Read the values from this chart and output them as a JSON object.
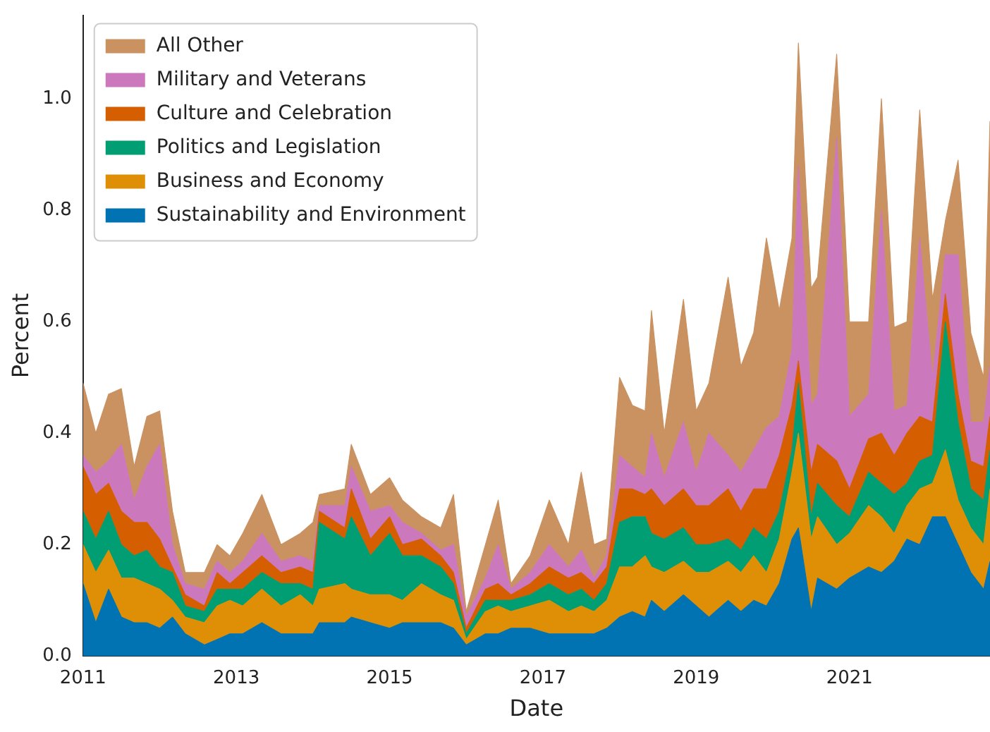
{
  "chart_data": {
    "type": "area",
    "stacked": true,
    "xlabel": "Date",
    "ylabel": "Percent",
    "legend": "top left",
    "grid": false,
    "x": [
      "2011-01",
      "2011-03",
      "2011-05",
      "2011-07",
      "2011-09",
      "2011-11",
      "2012-01",
      "2012-03",
      "2012-05",
      "2012-08",
      "2012-10",
      "2012-12",
      "2013-02",
      "2013-05",
      "2013-08",
      "2013-11",
      "2014-01",
      "2014-02",
      "2014-06",
      "2014-07",
      "2014-10",
      "2015-01",
      "2015-03",
      "2015-06",
      "2015-09",
      "2015-11",
      "2016-01",
      "2016-04",
      "2016-06",
      "2016-08",
      "2016-11",
      "2017-02",
      "2017-05",
      "2017-07",
      "2017-09",
      "2017-11",
      "2018-01",
      "2018-03",
      "2018-05",
      "2018-06",
      "2018-08",
      "2018-11",
      "2019-01",
      "2019-03",
      "2019-06",
      "2019-08",
      "2019-10",
      "2019-12",
      "2020-02",
      "2020-04",
      "2020-05",
      "2020-07",
      "2020-08",
      "2020-11",
      "2021-01",
      "2021-04",
      "2021-06",
      "2021-08",
      "2021-10",
      "2021-12",
      "2022-02",
      "2022-04",
      "2022-06",
      "2022-08",
      "2022-10",
      "2022-11"
    ],
    "xlim": [
      "2011-01",
      "2022-11"
    ],
    "xticks": [
      "2011",
      "2013",
      "2015",
      "2017",
      "2019",
      "2021"
    ],
    "ylim": [
      0,
      1.15
    ],
    "yticks": [
      {
        "value": 0,
        "label": "0.0"
      },
      {
        "value": 0.2,
        "label": "0.2"
      },
      {
        "value": 0.4,
        "label": "0.4"
      },
      {
        "value": 0.6,
        "label": "0.6"
      },
      {
        "value": 0.8,
        "label": "0.8"
      },
      {
        "value": 1,
        "label": "1.0"
      }
    ],
    "series": [
      {
        "name": "Sustainability and Environment",
        "color": "#0173b2",
        "values": [
          0.13,
          0.06,
          0.12,
          0.07,
          0.06,
          0.06,
          0.05,
          0.07,
          0.04,
          0.02,
          0.03,
          0.04,
          0.04,
          0.06,
          0.04,
          0.04,
          0.04,
          0.06,
          0.06,
          0.07,
          0.06,
          0.05,
          0.06,
          0.06,
          0.06,
          0.05,
          0.02,
          0.04,
          0.04,
          0.05,
          0.05,
          0.04,
          0.04,
          0.04,
          0.04,
          0.05,
          0.07,
          0.08,
          0.07,
          0.1,
          0.08,
          0.11,
          0.09,
          0.07,
          0.1,
          0.08,
          0.1,
          0.09,
          0.13,
          0.21,
          0.23,
          0.08,
          0.14,
          0.12,
          0.14,
          0.16,
          0.15,
          0.17,
          0.21,
          0.2,
          0.25,
          0.25,
          0.2,
          0.15,
          0.12,
          0.17
        ]
      },
      {
        "name": "Business and Economy",
        "color": "#de8f05",
        "values": [
          0.07,
          0.09,
          0.07,
          0.07,
          0.08,
          0.07,
          0.07,
          0.03,
          0.03,
          0.04,
          0.06,
          0.06,
          0.05,
          0.06,
          0.05,
          0.07,
          0.05,
          0.06,
          0.07,
          0.05,
          0.05,
          0.06,
          0.04,
          0.07,
          0.05,
          0.05,
          0.01,
          0.04,
          0.05,
          0.03,
          0.04,
          0.06,
          0.04,
          0.05,
          0.04,
          0.05,
          0.09,
          0.08,
          0.11,
          0.06,
          0.07,
          0.06,
          0.06,
          0.08,
          0.07,
          0.07,
          0.08,
          0.06,
          0.08,
          0.12,
          0.17,
          0.13,
          0.11,
          0.08,
          0.08,
          0.11,
          0.1,
          0.05,
          0.06,
          0.1,
          0.06,
          0.12,
          0.08,
          0.08,
          0.08,
          0.13
        ]
      },
      {
        "name": "Politics and Legislation",
        "color": "#029e73",
        "values": [
          0.06,
          0.06,
          0.07,
          0.06,
          0.04,
          0.06,
          0.04,
          0.05,
          0.02,
          0.02,
          0.03,
          0.02,
          0.03,
          0.03,
          0.04,
          0.02,
          0.03,
          0.12,
          0.08,
          0.13,
          0.07,
          0.11,
          0.08,
          0.05,
          0.05,
          0.03,
          0.01,
          0.02,
          0.01,
          0.02,
          0.02,
          0.03,
          0.03,
          0.03,
          0.02,
          0.03,
          0.08,
          0.09,
          0.07,
          0.06,
          0.06,
          0.06,
          0.05,
          0.05,
          0.04,
          0.04,
          0.05,
          0.06,
          0.05,
          0.04,
          0.09,
          0.04,
          0.06,
          0.07,
          0.03,
          0.06,
          0.06,
          0.07,
          0.04,
          0.05,
          0.05,
          0.23,
          0.14,
          0.07,
          0.08,
          0.07
        ]
      },
      {
        "name": "Culture and Celebration",
        "color": "#d55e00",
        "values": [
          0.08,
          0.08,
          0.05,
          0.06,
          0.06,
          0.05,
          0.05,
          0.01,
          0.02,
          0.01,
          0.03,
          0.01,
          0.03,
          0.03,
          0.02,
          0.03,
          0.03,
          0.02,
          0.02,
          0.05,
          0.03,
          0.03,
          0.02,
          0.03,
          0.02,
          0.02,
          0.01,
          0.02,
          0.03,
          0.01,
          0.02,
          0.03,
          0.03,
          0.03,
          0.03,
          0.03,
          0.06,
          0.05,
          0.04,
          0.08,
          0.06,
          0.07,
          0.07,
          0.07,
          0.09,
          0.07,
          0.07,
          0.09,
          0.1,
          0.08,
          0.04,
          0.08,
          0.07,
          0.08,
          0.05,
          0.06,
          0.09,
          0.07,
          0.09,
          0.08,
          0.06,
          0.05,
          0.05,
          0.05,
          0.06,
          0.06
        ]
      },
      {
        "name": "Military and Veterans",
        "color": "#cc78bc",
        "values": [
          0.02,
          0.04,
          0.04,
          0.12,
          0.04,
          0.1,
          0.17,
          0.04,
          0.02,
          0.03,
          0.02,
          0.02,
          0.02,
          0.04,
          0.02,
          0.02,
          0.02,
          0.01,
          0.04,
          0.04,
          0.05,
          0.02,
          0.04,
          0.01,
          0.01,
          0.05,
          0.02,
          0.02,
          0.07,
          0.01,
          0.02,
          0.04,
          0.02,
          0.04,
          0.01,
          0.02,
          0.06,
          0.04,
          0.03,
          0.1,
          0.05,
          0.12,
          0.06,
          0.13,
          0.06,
          0.07,
          0.07,
          0.11,
          0.07,
          0.1,
          0.35,
          0.12,
          0.09,
          0.58,
          0.13,
          0.08,
          0.4,
          0.08,
          0.05,
          0.32,
          0.08,
          0.07,
          0.25,
          0.07,
          0.08,
          0.09
        ]
      },
      {
        "name": "All Other",
        "color": "#ca9161",
        "values": [
          0.13,
          0.07,
          0.12,
          0.1,
          0.06,
          0.09,
          0.06,
          0.06,
          0.02,
          0.03,
          0.03,
          0.03,
          0.05,
          0.07,
          0.03,
          0.04,
          0.07,
          0.02,
          0.03,
          0.04,
          0.03,
          0.05,
          0.04,
          0.03,
          0.04,
          0.09,
          0.01,
          0.06,
          0.08,
          0.01,
          0.03,
          0.08,
          0.04,
          0.14,
          0.06,
          0.03,
          0.14,
          0.11,
          0.12,
          0.22,
          0.08,
          0.22,
          0.11,
          0.09,
          0.32,
          0.19,
          0.21,
          0.34,
          0.19,
          0.2,
          0.22,
          0.21,
          0.21,
          0.15,
          0.17,
          0.13,
          0.2,
          0.15,
          0.15,
          0.23,
          0.14,
          0.06,
          0.17,
          0.16,
          0.08,
          0.44
        ]
      }
    ]
  }
}
